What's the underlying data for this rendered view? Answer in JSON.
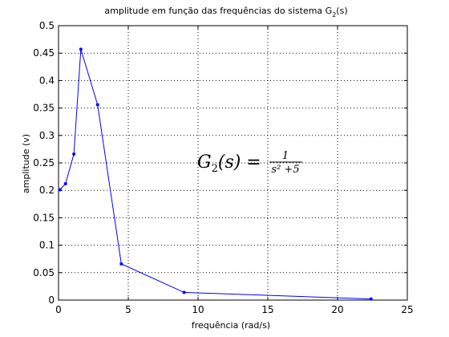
{
  "chart_data": {
    "type": "line",
    "title_main": "amplitude em função das frequências do sistema G",
    "title_sub": "2",
    "title_end": "(s)",
    "xlabel": "frequência (rad/s)",
    "ylabel": "amplitude (v)",
    "xlim": [
      0,
      25
    ],
    "ylim": [
      0,
      0.5
    ],
    "xticks": [
      0,
      5,
      10,
      15,
      20,
      25
    ],
    "yticks": [
      0,
      0.05,
      0.1,
      0.15,
      0.2,
      0.25,
      0.3,
      0.35,
      0.4,
      0.45,
      0.5
    ],
    "grid": true,
    "series": [
      {
        "color": "#0000ff",
        "marker": "dot",
        "x": [
          0.1,
          0.5,
          1.1,
          1.6,
          2.8,
          4.5,
          9.0,
          22.4
        ],
        "y": [
          0.201,
          0.212,
          0.266,
          0.457,
          0.356,
          0.066,
          0.014,
          0.002
        ]
      }
    ],
    "annotation": {
      "lhs": "G",
      "lhs_sub": "2",
      "lhs_arg": "(s) =",
      "numerator": "1",
      "denominator": "s² +5",
      "data_x": 10,
      "data_y": 0.25
    }
  }
}
